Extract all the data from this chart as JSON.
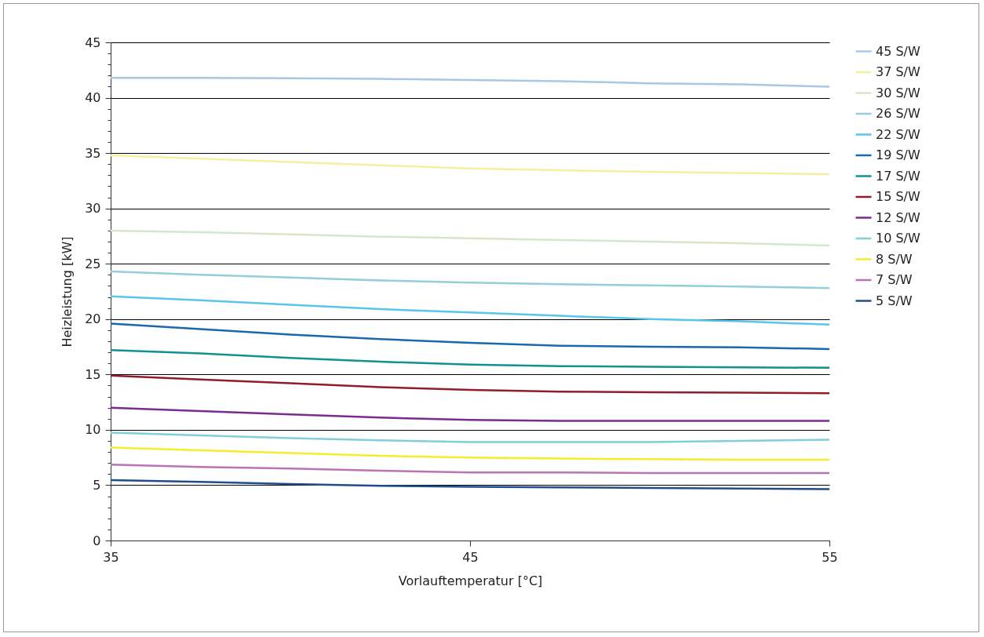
{
  "chart_data": {
    "type": "line",
    "xlabel": "Vorlauftemperatur [°C]",
    "ylabel": "Heizleistung [kW]",
    "x": [
      35,
      37.5,
      40,
      42.5,
      45,
      47.5,
      50,
      52.5,
      55
    ],
    "xlim": [
      35,
      55
    ],
    "xticks": [
      35,
      45,
      55
    ],
    "ylim": [
      0,
      45
    ],
    "yticks": [
      0,
      {
        "value": 1,
        "label": null
      },
      {
        "value": 2,
        "label": null
      },
      {
        "value": 3,
        "label": null
      },
      {
        "value": 4,
        "label": null
      },
      5,
      {
        "value": 6,
        "label": null
      },
      {
        "value": 7,
        "label": null
      },
      {
        "value": 8,
        "label": null
      },
      {
        "value": 9,
        "label": null
      },
      10,
      {
        "value": 11,
        "label": null
      },
      {
        "value": 12,
        "label": null
      },
      {
        "value": 13,
        "label": null
      },
      {
        "value": 14,
        "label": null
      },
      15,
      {
        "value": 16,
        "label": null
      },
      {
        "value": 17,
        "label": null
      },
      {
        "value": 18,
        "label": null
      },
      {
        "value": 19,
        "label": null
      },
      20,
      {
        "value": 21,
        "label": null
      },
      {
        "value": 22,
        "label": null
      },
      {
        "value": 23,
        "label": null
      },
      {
        "value": 24,
        "label": null
      },
      25,
      {
        "value": 26,
        "label": null
      },
      {
        "value": 27,
        "label": null
      },
      {
        "value": 28,
        "label": null
      },
      {
        "value": 29,
        "label": null
      },
      30,
      {
        "value": 31,
        "label": null
      },
      {
        "value": 32,
        "label": null
      },
      {
        "value": 33,
        "label": null
      },
      {
        "value": 34,
        "label": null
      },
      35,
      {
        "value": 36,
        "label": null
      },
      {
        "value": 37,
        "label": null
      },
      {
        "value": 38,
        "label": null
      },
      {
        "value": 39,
        "label": null
      },
      40,
      {
        "value": 41,
        "label": null
      },
      {
        "value": 42,
        "label": null
      },
      {
        "value": 43,
        "label": null
      },
      {
        "value": 44,
        "label": null
      },
      45
    ],
    "grid": "y",
    "legend": "right",
    "marker": "none",
    "line_style": "solid",
    "series": [
      {
        "name": "45 S/W",
        "color": "#a9c8e8",
        "values": [
          41.8,
          41.8,
          41.75,
          41.7,
          41.6,
          41.5,
          41.3,
          41.2,
          41.0
        ]
      },
      {
        "name": "37 S/W",
        "color": "#f5f0a0",
        "values": [
          34.8,
          34.5,
          34.2,
          33.9,
          33.6,
          33.45,
          33.3,
          33.2,
          33.1
        ]
      },
      {
        "name": "30 S/W",
        "color": "#d6e6c8",
        "values": [
          28.0,
          27.85,
          27.65,
          27.45,
          27.3,
          27.15,
          27.0,
          26.85,
          26.65
        ]
      },
      {
        "name": "26 S/W",
        "color": "#92cfd8",
        "values": [
          24.3,
          24.0,
          23.75,
          23.5,
          23.3,
          23.15,
          23.05,
          22.95,
          22.8
        ]
      },
      {
        "name": "22 S/W",
        "color": "#58c5ea",
        "values": [
          22.05,
          21.7,
          21.3,
          20.9,
          20.6,
          20.3,
          20.0,
          19.8,
          19.5
        ]
      },
      {
        "name": "19 S/W",
        "color": "#1b68ad",
        "values": [
          19.6,
          19.1,
          18.6,
          18.2,
          17.85,
          17.6,
          17.5,
          17.45,
          17.3
        ]
      },
      {
        "name": "17 S/W",
        "color": "#13918f",
        "values": [
          17.2,
          16.9,
          16.5,
          16.15,
          15.9,
          15.75,
          15.7,
          15.65,
          15.6
        ]
      },
      {
        "name": "15 S/W",
        "color": "#8f1e2a",
        "values": [
          14.9,
          14.55,
          14.2,
          13.85,
          13.6,
          13.45,
          13.4,
          13.35,
          13.3
        ]
      },
      {
        "name": "12 S/W",
        "color": "#7b2a8e",
        "values": [
          12.0,
          11.7,
          11.4,
          11.1,
          10.9,
          10.8,
          10.8,
          10.8,
          10.8
        ]
      },
      {
        "name": "10 S/W",
        "color": "#80cfd9",
        "values": [
          9.75,
          9.5,
          9.25,
          9.05,
          8.9,
          8.9,
          8.9,
          9.0,
          9.1
        ]
      },
      {
        "name": "8 S/W",
        "color": "#f5ec2a",
        "values": [
          8.4,
          8.15,
          7.9,
          7.65,
          7.5,
          7.4,
          7.35,
          7.3,
          7.3
        ]
      },
      {
        "name": "7 S/W",
        "color": "#bd72b5",
        "values": [
          6.85,
          6.65,
          6.5,
          6.3,
          6.15,
          6.15,
          6.1,
          6.1,
          6.1
        ]
      },
      {
        "name": "5 S/W",
        "color": "#1f4e89",
        "values": [
          5.45,
          5.3,
          5.1,
          4.95,
          4.85,
          4.8,
          4.75,
          4.7,
          4.65
        ]
      }
    ]
  }
}
